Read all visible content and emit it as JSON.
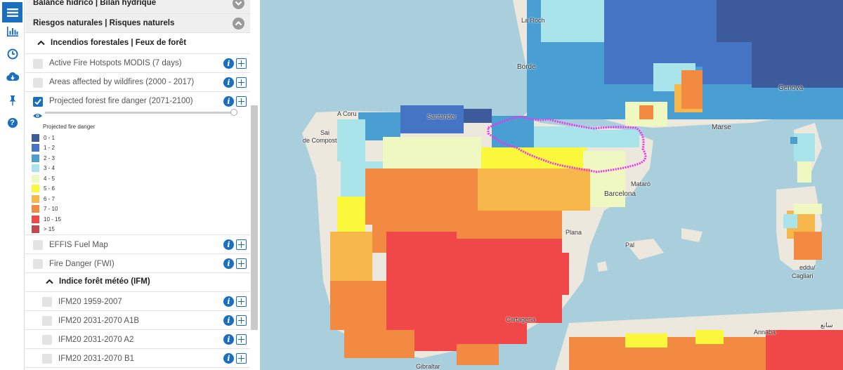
{
  "sidebar_icons": [
    {
      "name": "menu-icon"
    },
    {
      "name": "chart-icon"
    },
    {
      "name": "clock-icon"
    },
    {
      "name": "cloud-download-icon"
    },
    {
      "name": "pin-icon"
    },
    {
      "name": "help-icon",
      "glyph": "?"
    }
  ],
  "panel": {
    "sections": {
      "water_balance": "Balance hídrico | Bilan hydrique",
      "natural_risks": "Riesgos naturales | Risques naturels"
    },
    "forest_fires": {
      "title": "Incendios forestales | Feux de forêt",
      "layers": {
        "modis": "Active Fire Hotspots MODIS (7 days)",
        "wildfires": "Areas affected by wildfires (2000 - 2017)",
        "projected": "Projected forest fire danger (2071-2100)",
        "effis": "EFFIS Fuel Map",
        "fwi": "Fire Danger (FWI)"
      },
      "opacity": 1.0
    },
    "legend": {
      "title": "Projected fire danger",
      "items": [
        {
          "label": "0 - 1",
          "color": "#3d5a9a"
        },
        {
          "label": "1 - 2",
          "color": "#4574c4"
        },
        {
          "label": "2 - 3",
          "color": "#4a9fd2"
        },
        {
          "label": "3 - 4",
          "color": "#a8e4ea"
        },
        {
          "label": "4 - 5",
          "color": "#eff8c0"
        },
        {
          "label": "5 - 6",
          "color": "#fbf73a"
        },
        {
          "label": "6 - 7",
          "color": "#f8b74a"
        },
        {
          "label": "7 - 10",
          "color": "#f28a42"
        },
        {
          "label": "10 - 15",
          "color": "#f04848"
        },
        {
          "label": "> 15",
          "color": "#c2484e"
        }
      ]
    },
    "ifm": {
      "title": "Indice forêt météo (IFM)",
      "layers": [
        "IFM20 1959-2007",
        "IFM20 2031-2070 A1B",
        "IFM20 2031-2070 A2",
        "IFM20 2031-2070 B1"
      ]
    }
  },
  "map": {
    "labels": {
      "la_roche": "La Roch",
      "bordeaux": "Borde",
      "genova": "Genova",
      "marseille": "Marse",
      "a_coruna": "A Coru",
      "santiago_1": "Sai",
      "santiago_2": "de Compost",
      "santander": "Santander",
      "barcelona": "Barcelona",
      "mataro": "Mataró",
      "valencia": "Plana",
      "palma": "Pal",
      "cartagena": "Cartagena",
      "gibraltar": "Gibraltar",
      "cagliari_1": "eddu/",
      "cagliari_2": "Cagliari",
      "annaba": "Annaba",
      "arabic_label": "سانع"
    }
  }
}
